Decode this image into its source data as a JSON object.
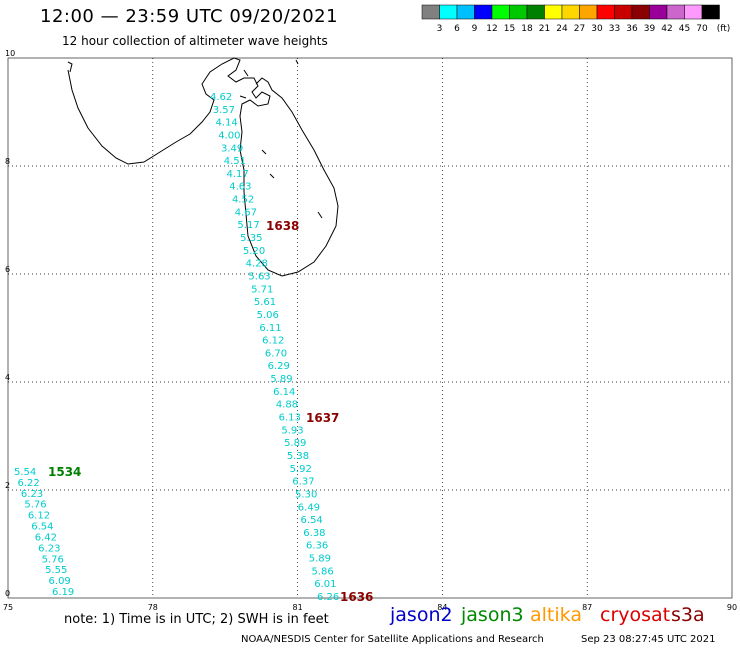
{
  "header": {
    "title": "12:00 — 23:59 UTC 09/20/2021",
    "subtitle": "12 hour collection of altimeter wave heights"
  },
  "colorbar": {
    "colors": [
      "#808080",
      "#00ffff",
      "#00bfff",
      "#0000ff",
      "#00ff00",
      "#00c800",
      "#008000",
      "#ffff00",
      "#ffd700",
      "#ffa500",
      "#ff0000",
      "#c80000",
      "#8b0000",
      "#990099",
      "#cc66cc",
      "#ff99ff",
      "#000000"
    ],
    "labels": [
      "3",
      "6",
      "9",
      "12",
      "15",
      "18",
      "21",
      "24",
      "27",
      "30",
      "33",
      "36",
      "39",
      "42",
      "45",
      "70",
      "(ft)"
    ]
  },
  "map": {
    "lon_ticks": [
      "75",
      "78",
      "81",
      "84",
      "87",
      "90"
    ],
    "lat_ticks": [
      "0",
      "2",
      "4",
      "6",
      "8",
      "10"
    ],
    "track_a": {
      "values": [
        "4.62",
        "3.57",
        "4.14",
        "4.00",
        "3.49",
        "4.51",
        "4.17",
        "4.63",
        "4.52",
        "4.67",
        "5.17",
        "5.35",
        "5.20",
        "4.28",
        "5.63",
        "5.71",
        "5.61",
        "5.06",
        "6.11",
        "6.12",
        "6.70",
        "6.29",
        "5.89",
        "6.14",
        "4.88",
        "6.13",
        "5.93",
        "5.89",
        "5.38",
        "5.92",
        "6.37",
        "5.30",
        "6.49",
        "6.54",
        "6.38",
        "6.36",
        "5.89",
        "5.86",
        "6.01",
        "6.26"
      ],
      "time_labels": [
        "1638",
        "1637",
        "1636"
      ]
    },
    "track_b": {
      "values": [
        "5.54",
        "6.22",
        "6.23",
        "5.76",
        "6.12",
        "6.54",
        "6.42",
        "6.23",
        "5.76",
        "5.55",
        "6.09",
        "6.19"
      ],
      "time_label": "1534"
    }
  },
  "legend": {
    "satellites": [
      {
        "name": "jason2",
        "color": "#0000cc"
      },
      {
        "name": "jason3",
        "color": "#008800"
      },
      {
        "name": "altika",
        "color": "#ff9900"
      },
      {
        "name": "cryosat",
        "color": "#dd0000"
      },
      {
        "name": "s3a",
        "color": "#8b0000"
      }
    ],
    "note": "note: 1) Time is in UTC; 2) SWH is in feet"
  },
  "footer": {
    "credit": "NOAA/NESDIS Center for Satellite Applications and Research",
    "timestamp": "Sep 23 08:27:45 UTC 2021"
  }
}
